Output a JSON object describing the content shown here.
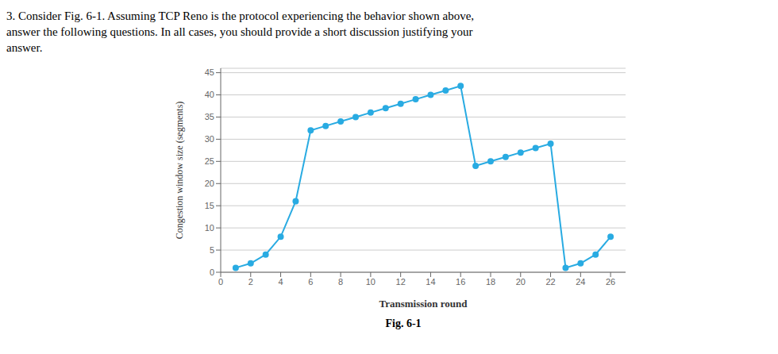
{
  "chart_data": {
    "type": "line",
    "title": "Fig. 6-1",
    "annotations": [
      "3. Consider Fig. 6-1. Assuming TCP Reno is the protocol experiencing the behavior shown above,",
      "answer the following questions. In all cases, you should provide a short discussion justifying your",
      "answer."
    ],
    "xlabel": "Transmission round",
    "ylabel": "Congestion window size (segments)",
    "x": [
      1,
      2,
      3,
      4,
      5,
      6,
      7,
      8,
      9,
      10,
      11,
      12,
      13,
      14,
      15,
      16,
      17,
      18,
      19,
      20,
      21,
      22,
      23,
      24,
      25,
      26
    ],
    "series": [
      {
        "name": "Congestion window size (segments)",
        "color": "#29ABE2",
        "marker": "circle",
        "values": [
          1,
          2,
          4,
          8,
          16,
          32,
          33,
          34,
          35,
          36,
          37,
          38,
          39,
          40,
          41,
          42,
          24,
          25,
          26,
          27,
          28,
          29,
          1,
          2,
          4,
          8
        ]
      }
    ],
    "xlim": [
      0,
      27
    ],
    "ylim": [
      0,
      46
    ],
    "xticks": [
      0,
      2,
      4,
      6,
      8,
      10,
      12,
      14,
      16,
      18,
      20,
      22,
      24,
      26
    ],
    "yticks": [
      0,
      5,
      10,
      15,
      20,
      25,
      30,
      35,
      40,
      45
    ],
    "grid": "y"
  }
}
